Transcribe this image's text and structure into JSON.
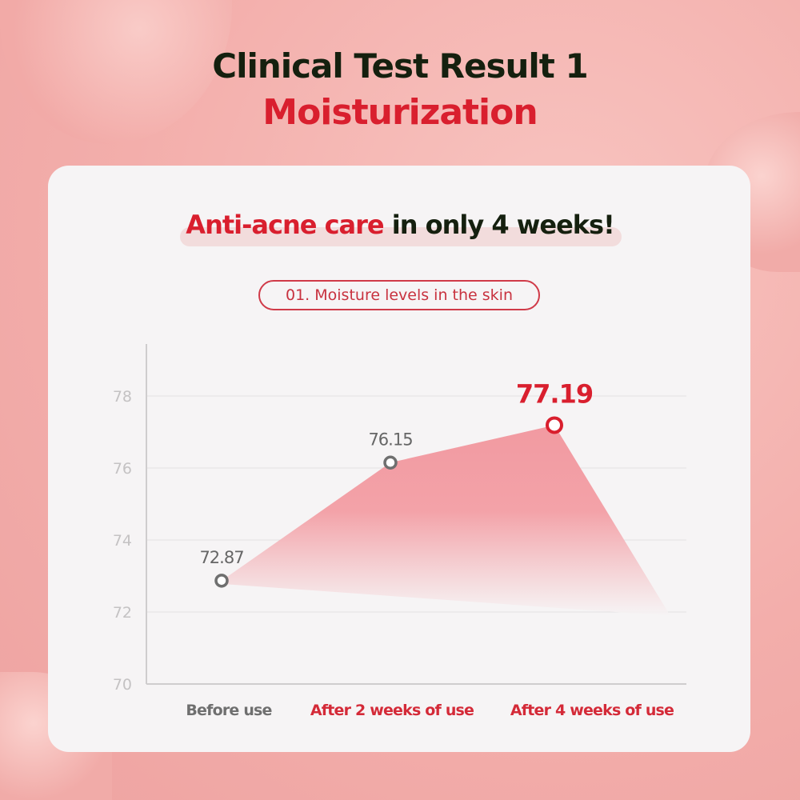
{
  "title": "Clinical Test Result 1",
  "subtitle": "Moisturization",
  "headline": {
    "highlight": "Anti-acne care",
    "rest": "in only 4 weeks!"
  },
  "badge": "01. Moisture levels in the skin",
  "colors": {
    "accent": "#d91f2e",
    "muted": "#777777",
    "area": "#f3a0a6"
  },
  "chart_data": {
    "type": "area",
    "categories": [
      "Before use",
      "After 2 weeks of use",
      "After 4 weeks of use"
    ],
    "values": [
      72.87,
      76.15,
      77.19
    ],
    "data_labels": [
      "72.87",
      "76.15",
      "77.19"
    ],
    "yticks": [
      "70",
      "72",
      "74",
      "76",
      "78"
    ],
    "ylim": [
      70,
      79.5
    ],
    "grid": true,
    "highlight_index": 2
  }
}
